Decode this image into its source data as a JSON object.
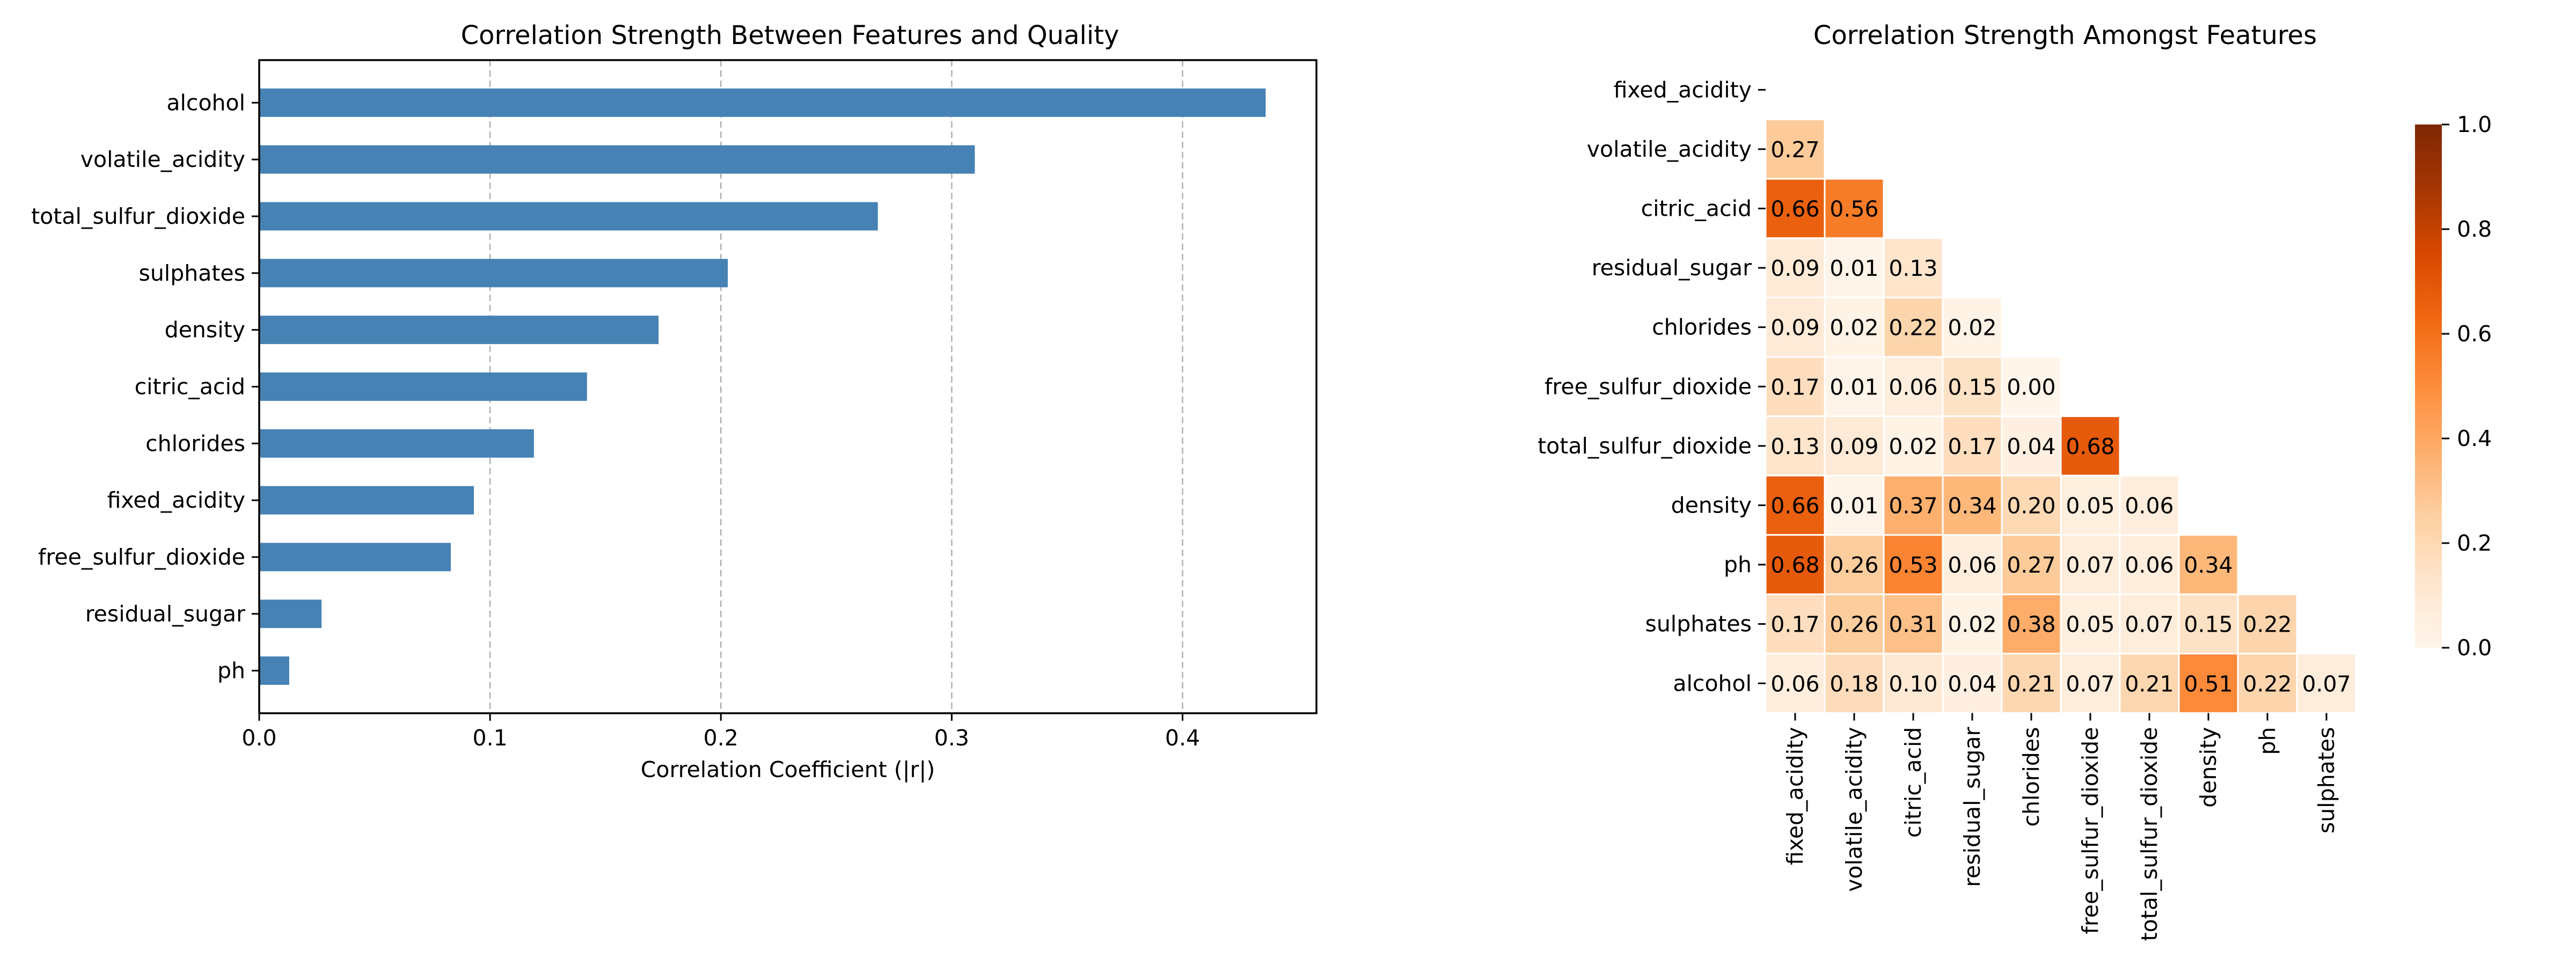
{
  "chart_data": [
    {
      "type": "bar",
      "orientation": "horizontal",
      "title": "Correlation Strength Between Features and Quality",
      "xlabel": "Correlation Coefficient (|r|)",
      "ylabel": "",
      "categories": [
        "alcohol",
        "volatile_acidity",
        "total_sulfur_dioxide",
        "sulphates",
        "density",
        "citric_acid",
        "chlorides",
        "fixed_acidity",
        "free_sulfur_dioxide",
        "residual_sugar",
        "ph"
      ],
      "values": [
        0.436,
        0.31,
        0.268,
        0.203,
        0.173,
        0.142,
        0.119,
        0.093,
        0.083,
        0.027,
        0.013
      ],
      "xlim": [
        0,
        0.458
      ],
      "xticks": [
        0.0,
        0.1,
        0.2,
        0.3,
        0.4
      ],
      "xtick_labels": [
        "0.0",
        "0.1",
        "0.2",
        "0.3",
        "0.4"
      ],
      "grid": "vertical dashed",
      "bar_color": "#4682b4"
    },
    {
      "type": "heatmap",
      "title": "Correlation Strength Amongst Features",
      "row_labels": [
        "fixed_acidity",
        "volatile_acidity",
        "citric_acid",
        "residual_sugar",
        "chlorides",
        "free_sulfur_dioxide",
        "total_sulfur_dioxide",
        "density",
        "ph",
        "sulphates",
        "alcohol"
      ],
      "col_labels": [
        "fixed_acidity",
        "volatile_acidity",
        "citric_acid",
        "residual_sugar",
        "chlorides",
        "free_sulfur_dioxide",
        "total_sulfur_dioxide",
        "density",
        "ph",
        "sulphates"
      ],
      "mask": "lower triangle (strict)",
      "rows": [
        [],
        [
          "0.27"
        ],
        [
          "0.66",
          "0.56"
        ],
        [
          "0.09",
          "0.01",
          "0.13"
        ],
        [
          "0.09",
          "0.02",
          "0.22",
          "0.02"
        ],
        [
          "0.17",
          "0.01",
          "0.06",
          "0.15",
          "0.00"
        ],
        [
          "0.13",
          "0.09",
          "0.02",
          "0.17",
          "0.04",
          "0.68"
        ],
        [
          "0.66",
          "0.01",
          "0.37",
          "0.34",
          "0.20",
          "0.05",
          "0.06"
        ],
        [
          "0.68",
          "0.26",
          "0.53",
          "0.06",
          "0.27",
          "0.07",
          "0.06",
          "0.34"
        ],
        [
          "0.17",
          "0.26",
          "0.31",
          "0.02",
          "0.38",
          "0.05",
          "0.07",
          "0.15",
          "0.22"
        ],
        [
          "0.06",
          "0.18",
          "0.10",
          "0.04",
          "0.21",
          "0.07",
          "0.21",
          "0.51",
          "0.22",
          "0.07"
        ]
      ],
      "colorbar": {
        "colormap": "Oranges",
        "range": [
          0.0,
          1.0
        ],
        "ticks": [
          "0.0",
          "0.2",
          "0.4",
          "0.6",
          "0.8",
          "1.0"
        ]
      }
    }
  ]
}
